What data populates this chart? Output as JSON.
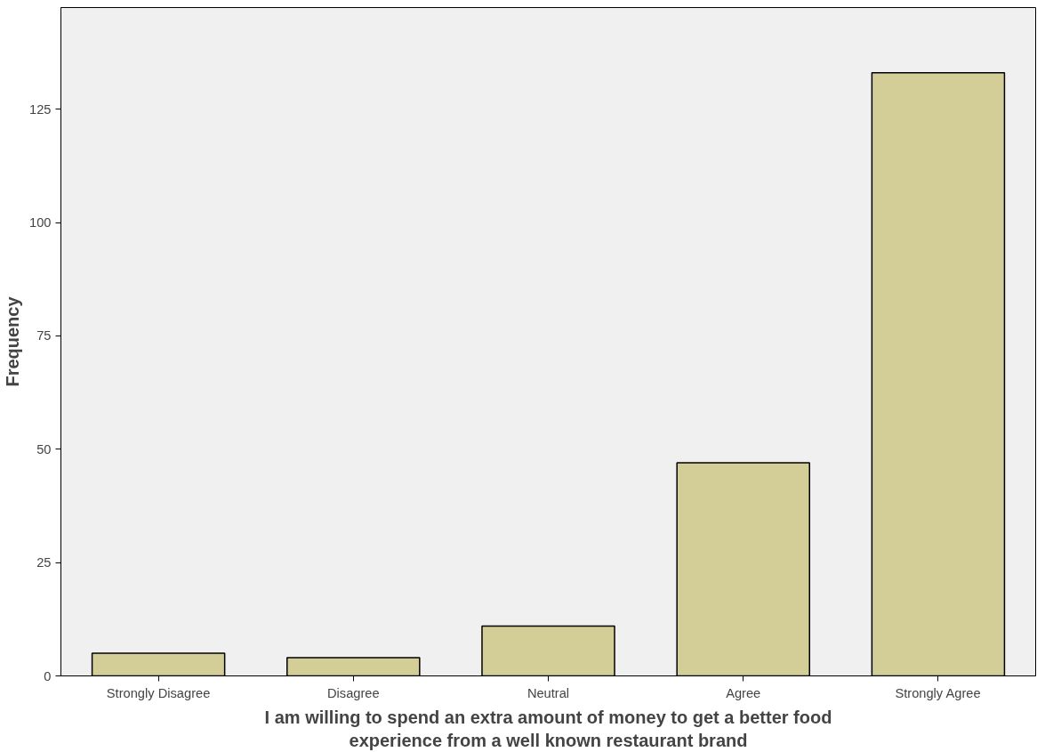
{
  "chart_data": {
    "type": "bar",
    "xlabel": "I am willing to spend an extra amount of money to get a better food\nexperience from a well known restaurant brand",
    "ylabel": "Frequency",
    "categories": [
      "Strongly Disagree",
      "Disagree",
      "Neutral",
      "Agree",
      "Strongly Agree"
    ],
    "values": [
      5,
      4,
      11,
      47,
      133
    ],
    "color": "#d3ce97",
    "ylim": [
      0,
      147.4
    ],
    "yticks": [
      0,
      25,
      50,
      75,
      100,
      125
    ],
    "grid": false
  }
}
